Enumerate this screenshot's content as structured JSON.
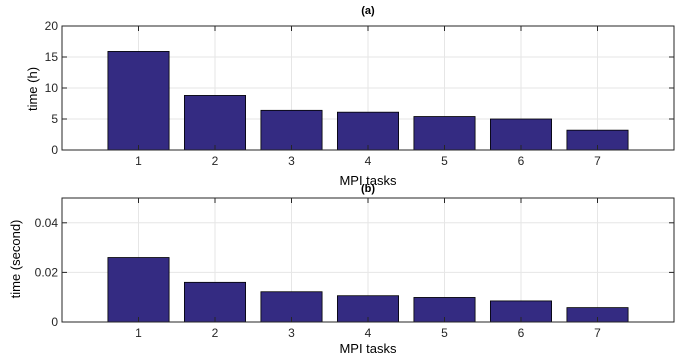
{
  "chart_data": [
    {
      "type": "bar",
      "title": "(a)",
      "xlabel": "MPI tasks",
      "ylabel": "time (h)",
      "categories": [
        "1",
        "2",
        "3",
        "4",
        "5",
        "6",
        "7"
      ],
      "values": [
        15.9,
        8.8,
        6.4,
        6.1,
        5.4,
        5.0,
        3.2
      ],
      "ylim": [
        0,
        20
      ],
      "yticks": [
        0,
        5,
        10,
        15,
        20
      ],
      "ytick_labels": [
        "0",
        "5",
        "10",
        "15",
        "20"
      ],
      "grid": true,
      "bar_color": "#342b82"
    },
    {
      "type": "bar",
      "title": "(b)",
      "xlabel": "MPI tasks",
      "ylabel": "time (second)",
      "categories": [
        "1",
        "2",
        "3",
        "4",
        "5",
        "6",
        "7"
      ],
      "values": [
        0.026,
        0.016,
        0.0122,
        0.0106,
        0.0099,
        0.0085,
        0.0058
      ],
      "ylim": [
        0,
        0.05
      ],
      "yticks": [
        0,
        0.02,
        0.04
      ],
      "ytick_labels": [
        "0",
        "0.02",
        "0.04"
      ],
      "grid": true,
      "bar_color": "#342b82"
    }
  ]
}
